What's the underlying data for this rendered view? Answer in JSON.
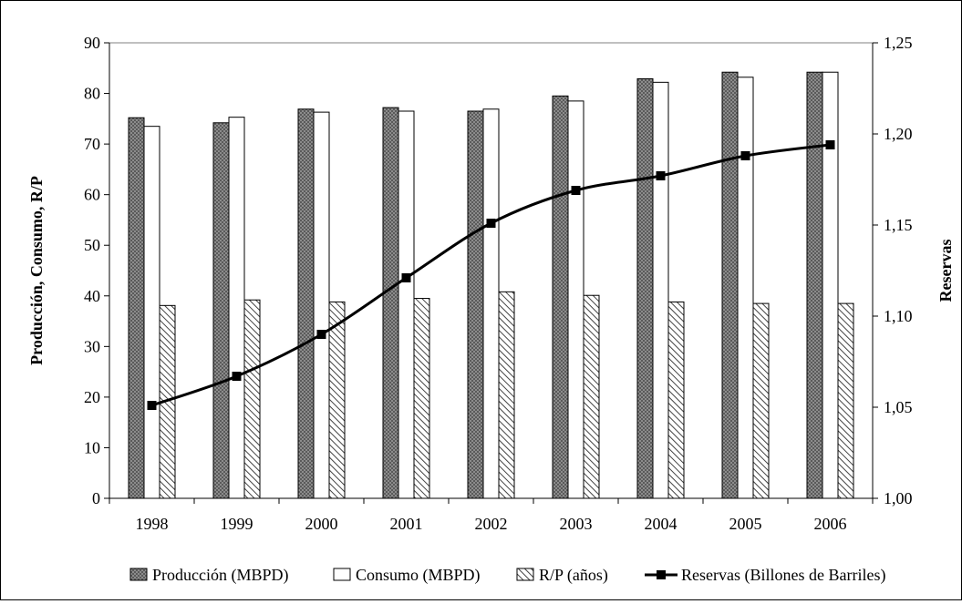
{
  "chart_data": {
    "type": "bar",
    "categories": [
      "1998",
      "1999",
      "2000",
      "2001",
      "2002",
      "2003",
      "2004",
      "2005",
      "2006"
    ],
    "series": [
      {
        "name": "Producción (MBPD)",
        "kind": "bar",
        "axis": "left",
        "pattern": "crosshatch",
        "values": [
          75.2,
          74.2,
          76.9,
          77.2,
          76.5,
          79.5,
          82.9,
          84.2,
          84.2
        ]
      },
      {
        "name": "Consumo (MBPD)",
        "kind": "bar",
        "axis": "left",
        "pattern": "white",
        "values": [
          73.5,
          75.3,
          76.3,
          76.5,
          76.9,
          78.5,
          82.2,
          83.2,
          84.2
        ]
      },
      {
        "name": "R/P (años)",
        "kind": "bar",
        "axis": "left",
        "pattern": "diagonal",
        "values": [
          38.1,
          39.2,
          38.8,
          39.5,
          40.8,
          40.1,
          38.8,
          38.5,
          38.5
        ]
      },
      {
        "name": "Reservas (Billones de Barriles)",
        "kind": "line",
        "axis": "right",
        "marker": "square",
        "values": [
          1.051,
          1.067,
          1.09,
          1.121,
          1.151,
          1.169,
          1.177,
          1.188,
          1.194
        ]
      }
    ],
    "ylabel": "Producción, Consumo, R/P",
    "y2label": "Reservas",
    "ylim": [
      0,
      90
    ],
    "y_ticks": [
      "0",
      "10",
      "20",
      "30",
      "40",
      "50",
      "60",
      "70",
      "80",
      "90"
    ],
    "y2lim": [
      1.0,
      1.25
    ],
    "y2_ticks": [
      "1,00",
      "1,05",
      "1,10",
      "1,15",
      "1,20",
      "1,25"
    ],
    "grid": false,
    "legend_position": "bottom",
    "colors": {
      "line": "#000000",
      "bar_outline": "#000000",
      "crosshatch": "#808080"
    }
  }
}
